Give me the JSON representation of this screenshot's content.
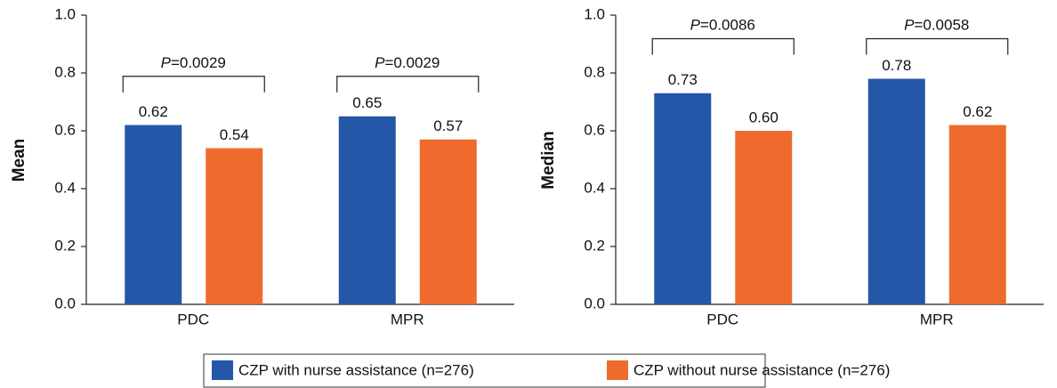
{
  "chart_data": [
    {
      "type": "bar",
      "y_label": "Mean",
      "categories": [
        "PDC",
        "MPR"
      ],
      "series": [
        {
          "name": "CZP with nurse assistance (n=276)",
          "color": "#2457a7",
          "values": [
            0.62,
            0.65
          ],
          "value_labels": [
            "0.62",
            "0.65"
          ]
        },
        {
          "name": "CZP without nurse assistance (n=276)",
          "color": "#ee6b2d",
          "values": [
            0.54,
            0.57
          ],
          "value_labels": [
            "0.54",
            "0.57"
          ]
        }
      ],
      "annotations": [
        "P=0.0029",
        "P=0.0029"
      ],
      "ylim": [
        0,
        1
      ],
      "yticks": [
        {
          "value": 0,
          "label": "0.0"
        },
        0.2,
        0.4,
        0.6,
        0.8,
        {
          "value": 1,
          "label": "1.0"
        }
      ]
    },
    {
      "type": "bar",
      "y_label": "Median",
      "categories": [
        "PDC",
        "MPR"
      ],
      "series": [
        {
          "color": "#2457a7",
          "values": [
            0.73,
            0.78
          ],
          "value_labels": [
            "0.73",
            "0.78"
          ]
        },
        {
          "color": "#ee6b2d",
          "values": [
            0.6,
            0.62
          ],
          "value_labels": [
            "0.60",
            "0.62"
          ]
        }
      ],
      "annotations": [
        "P=0.0086",
        "P=0.0058"
      ],
      "ylim": [
        0,
        1
      ],
      "yticks": [
        {
          "value": 0,
          "label": "0.0"
        },
        0.2,
        0.4,
        0.6,
        0.8,
        {
          "value": 1,
          "label": "1.0"
        }
      ]
    }
  ]
}
